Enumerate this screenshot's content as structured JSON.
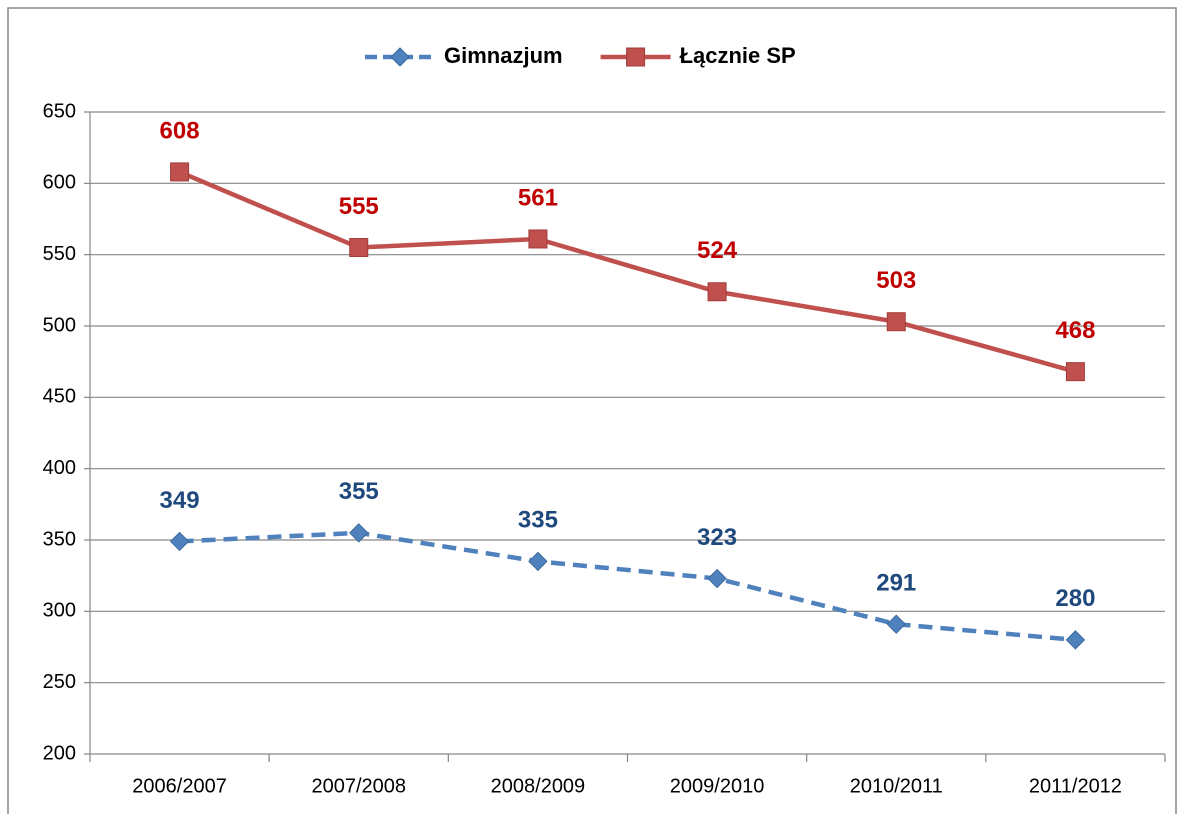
{
  "chart_data": {
    "type": "line",
    "categories": [
      "2006/2007",
      "2007/2008",
      "2008/2009",
      "2009/2010",
      "2010/2011",
      "2011/2012"
    ],
    "series": [
      {
        "name": "Gimnazjum",
        "color": "#4f81bd",
        "label_color": "#1f497d",
        "dashed": true,
        "marker": "diamond",
        "values": [
          349,
          355,
          335,
          323,
          291,
          280
        ]
      },
      {
        "name": "Łącznie SP",
        "color": "#c0504d",
        "label_color": "#c00000",
        "dashed": false,
        "marker": "square",
        "values": [
          608,
          555,
          561,
          524,
          503,
          468
        ]
      }
    ],
    "ylim": [
      200,
      650
    ],
    "yticks": [
      200,
      250,
      300,
      350,
      400,
      450,
      500,
      550,
      600,
      650
    ],
    "grid": true,
    "legend": "top"
  }
}
